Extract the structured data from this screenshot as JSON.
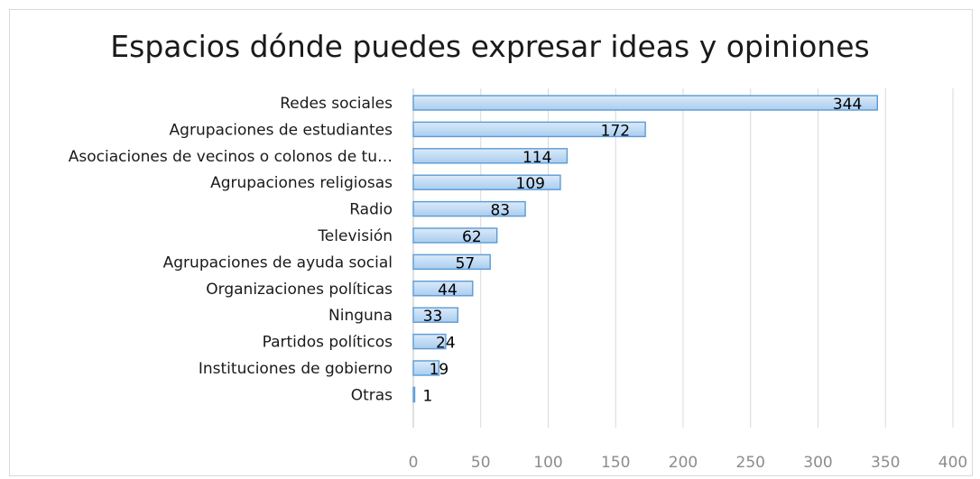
{
  "chart_data": {
    "type": "bar",
    "orientation": "horizontal",
    "title": "Espacios dónde puedes expresar ideas y opiniones",
    "categories": [
      "Redes sociales",
      "Agrupaciones de estudiantes",
      "Asociaciones de vecinos o colonos de tu…",
      "Agrupaciones religiosas",
      "Radio",
      "Televisión",
      "Agrupaciones de ayuda social",
      "Organizaciones políticas",
      "Ninguna",
      "Partidos políticos",
      "Instituciones de gobierno",
      "Otras"
    ],
    "values": [
      344,
      172,
      114,
      109,
      83,
      62,
      57,
      44,
      33,
      24,
      19,
      1
    ],
    "xlim": [
      0,
      400
    ],
    "x_ticks": [
      0,
      50,
      100,
      150,
      200,
      250,
      300,
      350,
      400
    ],
    "xlabel": "",
    "ylabel": "",
    "grid": true,
    "legend": "none",
    "colors": {
      "bar_fill_top": "#dbeaf8",
      "bar_fill_bottom": "#a9cdf0",
      "bar_stroke": "#5b9bd5",
      "grid": "#d9d9d9",
      "axis": "#bfbfbf"
    }
  }
}
